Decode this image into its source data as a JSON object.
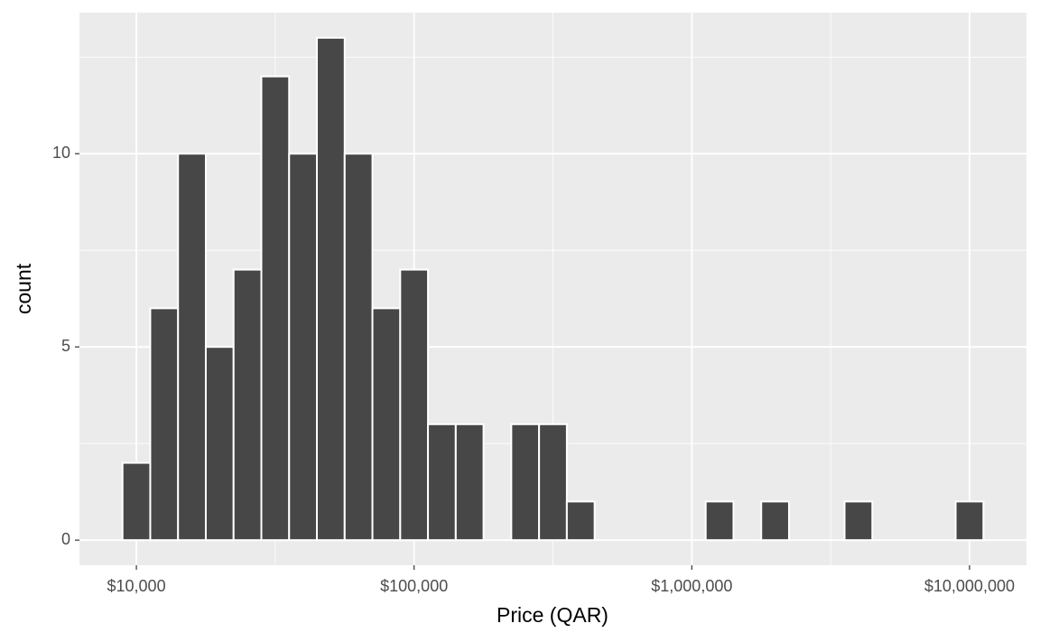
{
  "chart_data": {
    "type": "histogram",
    "x_label": "Price (QAR)",
    "y_label": "count",
    "log_x": true,
    "grid": true,
    "color": "#474747",
    "edge_color": "#ffffff",
    "background": "#ebebeb",
    "bins": [
      8913,
      11220,
      14125,
      17783,
      22387,
      28184,
      35481,
      44668,
      56234,
      70795,
      89125,
      112202,
      141254,
      177828,
      223872,
      281838,
      354813,
      446684,
      562341,
      707946,
      891251,
      1122018,
      1412538,
      1778279,
      2238721,
      2818383,
      3548134,
      4466836,
      5623413,
      7079458,
      8912509,
      11220185
    ],
    "values": [
      2,
      6,
      10,
      5,
      7,
      12,
      10,
      13,
      10,
      6,
      7,
      3,
      3,
      0,
      3,
      3,
      1,
      0,
      0,
      0,
      0,
      1,
      0,
      1,
      0,
      0,
      1,
      0,
      0,
      0,
      1
    ],
    "xlim": [
      6237,
      16032453
    ],
    "xticks": [
      {
        "value": 10000,
        "label": "$10,000"
      },
      {
        "value": 100000,
        "label": "$100,000"
      },
      {
        "value": 1000000,
        "label": "$1,000,000"
      },
      {
        "value": 10000000,
        "label": "$10,000,000"
      }
    ],
    "ylim": [
      -0.65,
      13.65
    ],
    "yticks": [
      0,
      5,
      10
    ]
  }
}
